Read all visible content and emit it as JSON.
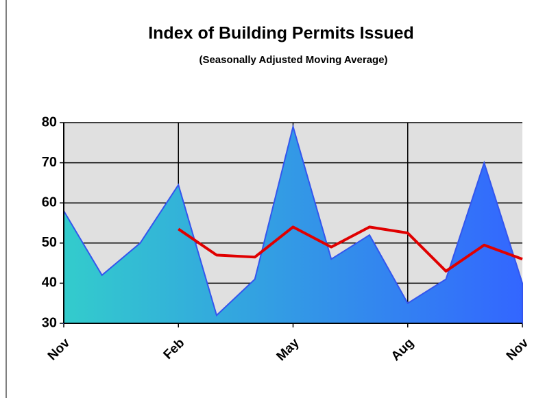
{
  "chart_data": {
    "type": "area",
    "title": "Index of Building Permits Issued",
    "subtitle": "(Seasonally Adjusted Moving Average)",
    "categories": [
      "Nov",
      null,
      null,
      "Feb",
      null,
      null,
      "May",
      null,
      null,
      "Aug",
      null,
      null,
      "Nov"
    ],
    "series": [
      {
        "type": "area",
        "color": [
          "#33cccc",
          "#3366ff"
        ],
        "values": [
          58,
          42,
          50,
          64.5,
          32,
          41,
          79,
          46,
          52,
          35,
          41,
          70,
          40
        ]
      },
      {
        "type": "line",
        "color": "#e00000",
        "values": [
          null,
          null,
          null,
          53.5,
          47,
          46.5,
          54,
          49,
          54,
          52.5,
          43,
          49.5,
          46
        ]
      }
    ],
    "ylim": [
      30,
      80
    ],
    "yticks": [
      30,
      40,
      50,
      60,
      70,
      80
    ],
    "grid": true
  }
}
